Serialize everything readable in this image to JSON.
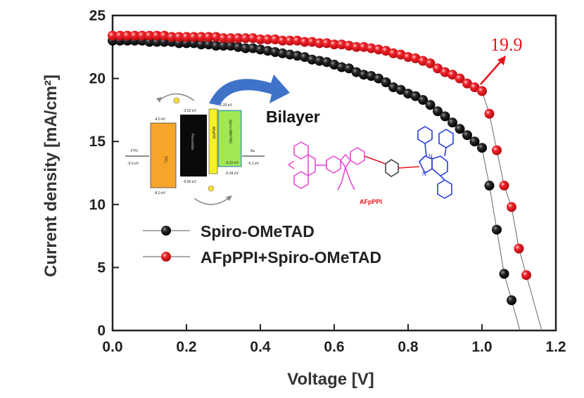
{
  "chart_data": {
    "type": "scatter",
    "title": "",
    "xlabel": "Voltage [V]",
    "ylabel": "Current density [mA/cm²]",
    "xlim": [
      0.0,
      1.2
    ],
    "ylim": [
      0,
      25
    ],
    "xticks": [
      "0.0",
      "0.2",
      "0.4",
      "0.6",
      "0.8",
      "1.0",
      "1.2"
    ],
    "yticks": [
      "0",
      "5",
      "10",
      "15",
      "20",
      "25"
    ],
    "grid": false,
    "legend_position": "lower-left",
    "series": [
      {
        "name": "Spiro-OMeTAD",
        "color": "#000000",
        "x": [
          0.0,
          0.02,
          0.04,
          0.06,
          0.08,
          0.1,
          0.12,
          0.14,
          0.16,
          0.18,
          0.2,
          0.22,
          0.24,
          0.26,
          0.28,
          0.3,
          0.32,
          0.34,
          0.36,
          0.38,
          0.4,
          0.42,
          0.44,
          0.46,
          0.48,
          0.5,
          0.52,
          0.54,
          0.56,
          0.58,
          0.6,
          0.62,
          0.64,
          0.66,
          0.68,
          0.7,
          0.72,
          0.74,
          0.76,
          0.78,
          0.8,
          0.82,
          0.84,
          0.86,
          0.88,
          0.9,
          0.92,
          0.94,
          0.96,
          0.98,
          1.0,
          1.02,
          1.04,
          1.06,
          1.08
        ],
        "y": [
          23.0,
          23.0,
          23.0,
          23.0,
          23.0,
          22.9,
          22.9,
          22.9,
          22.9,
          22.8,
          22.8,
          22.8,
          22.7,
          22.7,
          22.6,
          22.6,
          22.6,
          22.5,
          22.4,
          22.4,
          22.3,
          22.2,
          22.1,
          22.0,
          21.9,
          21.8,
          21.7,
          21.5,
          21.4,
          21.3,
          21.1,
          20.9,
          20.8,
          20.5,
          20.3,
          20.2,
          20.0,
          19.7,
          19.3,
          19.1,
          18.8,
          18.6,
          18.3,
          17.9,
          17.4,
          17.0,
          16.5,
          16.0,
          15.5,
          15.0,
          14.5,
          11.5,
          8.0,
          4.5,
          2.4
        ]
      },
      {
        "name": "AFpPPI+Spiro-OMeTAD",
        "color": "#e8141b",
        "x": [
          0.0,
          0.02,
          0.04,
          0.06,
          0.08,
          0.1,
          0.12,
          0.14,
          0.16,
          0.18,
          0.2,
          0.22,
          0.24,
          0.26,
          0.28,
          0.3,
          0.32,
          0.34,
          0.36,
          0.38,
          0.4,
          0.42,
          0.44,
          0.46,
          0.48,
          0.5,
          0.52,
          0.54,
          0.56,
          0.58,
          0.6,
          0.62,
          0.64,
          0.66,
          0.68,
          0.7,
          0.72,
          0.74,
          0.76,
          0.78,
          0.8,
          0.82,
          0.84,
          0.86,
          0.88,
          0.9,
          0.92,
          0.94,
          0.96,
          0.98,
          1.0,
          1.02,
          1.04,
          1.06,
          1.08,
          1.1,
          1.12
        ],
        "y": [
          23.4,
          23.4,
          23.4,
          23.4,
          23.4,
          23.4,
          23.4,
          23.4,
          23.3,
          23.3,
          23.3,
          23.3,
          23.3,
          23.3,
          23.3,
          23.2,
          23.2,
          23.2,
          23.2,
          23.2,
          23.1,
          23.1,
          23.1,
          23.0,
          23.0,
          23.0,
          22.9,
          22.9,
          22.8,
          22.8,
          22.7,
          22.7,
          22.6,
          22.5,
          22.5,
          22.4,
          22.3,
          22.2,
          22.0,
          21.9,
          21.7,
          21.6,
          21.4,
          21.2,
          20.8,
          20.5,
          20.3,
          20.0,
          19.6,
          19.3,
          19.0,
          17.2,
          14.3,
          11.5,
          9.8,
          6.5,
          4.4
        ]
      }
    ],
    "annotations": [
      {
        "text": "19.9",
        "color": "#e8141b"
      },
      {
        "text": "Bilayer"
      }
    ],
    "inset": {
      "energy_labels": [
        "FTO",
        "-5.0 eV",
        "-4.0 eV",
        "-8.0 eV",
        "TiO₂",
        "-3.92 eV",
        "-5.60 eV",
        "Perovskite",
        "-2.20 eV",
        "-5.34 eV",
        "-5.22 eV",
        "AFpPPI",
        "Spiro-OMeTAD",
        "Au",
        "-5.1 eV"
      ],
      "molecule_label": "AFpPPI"
    }
  }
}
